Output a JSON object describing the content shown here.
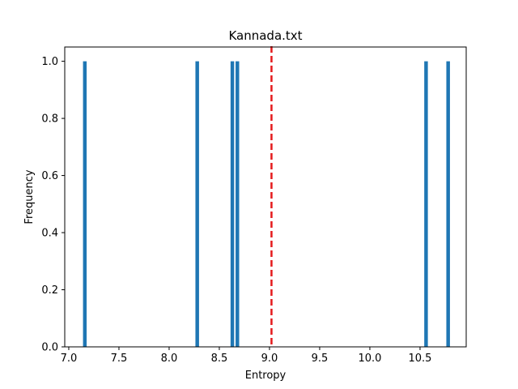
{
  "chart_data": {
    "type": "bar",
    "title": "Kannada.txt",
    "xlabel": "Entropy",
    "ylabel": "Frequency",
    "xlim": [
      6.96,
      10.96
    ],
    "ylim": [
      0,
      1.05
    ],
    "xticks": [
      7.0,
      7.5,
      8.0,
      8.5,
      9.0,
      9.5,
      10.0,
      10.5
    ],
    "xtick_labels": [
      "7.0",
      "7.5",
      "8.0",
      "8.5",
      "9.0",
      "9.5",
      "10.0",
      "10.5"
    ],
    "yticks": [
      0.0,
      0.2,
      0.4,
      0.6,
      0.8,
      1.0
    ],
    "ytick_labels": [
      "0.0",
      "0.2",
      "0.4",
      "0.6",
      "0.8",
      "1.0"
    ],
    "bin_width": 0.036,
    "bins": [
      {
        "x": 7.16,
        "value": 1
      },
      {
        "x": 8.28,
        "value": 1
      },
      {
        "x": 8.63,
        "value": 1
      },
      {
        "x": 8.68,
        "value": 1
      },
      {
        "x": 10.56,
        "value": 1
      },
      {
        "x": 10.78,
        "value": 1
      }
    ],
    "mean_line": {
      "x": 9.02,
      "color": "#e41a1c",
      "style": "dashed"
    },
    "bar_color": "#1f77b4",
    "grid": false
  }
}
